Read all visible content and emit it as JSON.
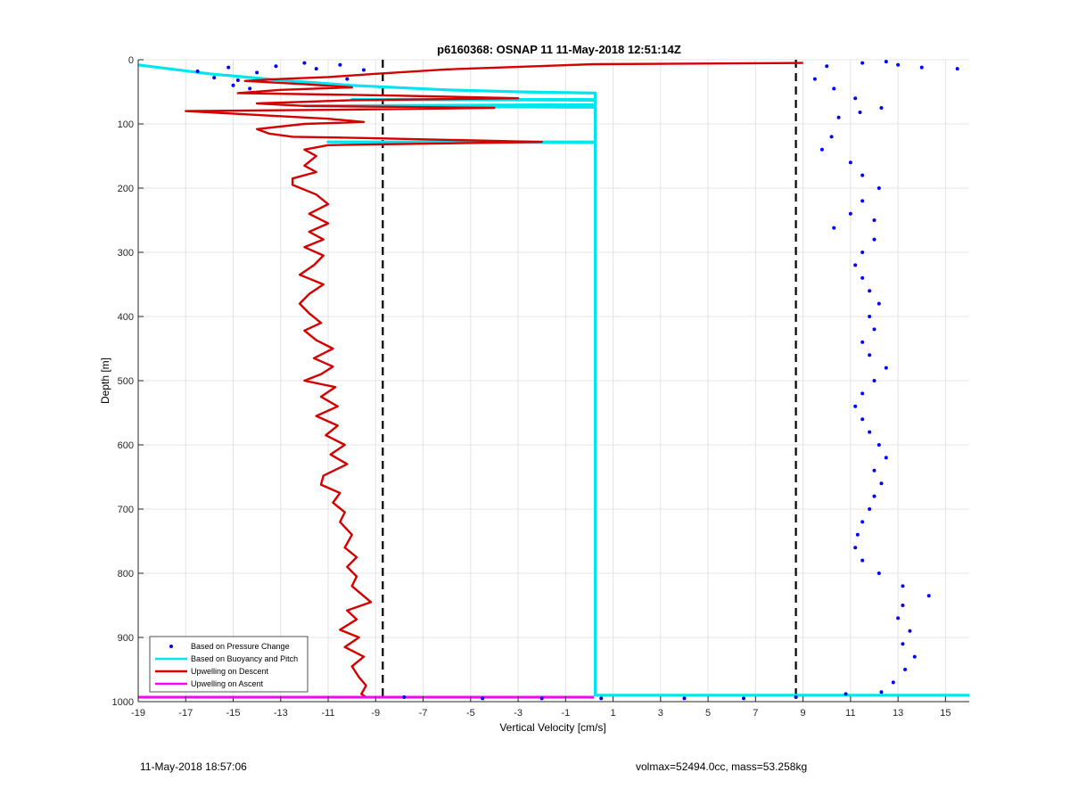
{
  "chart_data": {
    "type": "scatter",
    "title": "p6160368: OSNAP 11 11-May-2018 12:51:14Z",
    "xlabel": "Vertical Velocity [cm/s]",
    "ylabel": "Depth [m]",
    "xlim": [
      -19,
      16
    ],
    "ylim": [
      1000,
      0
    ],
    "y_reversed": true,
    "grid": true,
    "x_ticks": [
      -19,
      -17,
      -15,
      -13,
      -11,
      -9,
      -7,
      -5,
      -3,
      -1,
      1,
      3,
      5,
      7,
      9,
      11,
      13,
      15
    ],
    "y_ticks": [
      0,
      100,
      200,
      300,
      400,
      500,
      600,
      700,
      800,
      900,
      1000
    ],
    "reference_lines": [
      {
        "type": "vertical-dashed",
        "x": -8.7,
        "color": "#000000"
      },
      {
        "type": "vertical-dashed",
        "x": 8.7,
        "color": "#000000"
      }
    ],
    "legend": {
      "placement": "bottom-left",
      "entries": [
        {
          "label": "Based on Pressure Change",
          "color": "#0000ff",
          "marker": "dot"
        },
        {
          "label": "Based on Buoyancy and Pitch",
          "color": "#00e5ee",
          "marker": "line"
        },
        {
          "label": "Upwelling on Descent",
          "color": "#d40000",
          "marker": "line"
        },
        {
          "label": "Upwelling on Ascent",
          "color": "#ff00ff",
          "marker": "line"
        }
      ]
    },
    "series": [
      {
        "name": "Based on Buoyancy and Pitch",
        "style": "line",
        "color": "#00e5ee",
        "points": [
          [
            -19,
            8
          ],
          [
            -16,
            22
          ],
          [
            -13,
            32
          ],
          [
            -10,
            40
          ],
          [
            -6,
            47
          ],
          [
            -3,
            50
          ],
          [
            0.25,
            52
          ],
          [
            0.25,
            62
          ],
          [
            -10,
            62
          ],
          [
            0.25,
            63
          ],
          [
            0.25,
            70
          ],
          [
            -12,
            72
          ],
          [
            0.25,
            74
          ],
          [
            0.25,
            128
          ],
          [
            -11,
            128
          ],
          [
            0.25,
            129
          ],
          [
            0.25,
            990
          ],
          [
            16,
            990
          ]
        ]
      },
      {
        "name": "Upwelling on Descent",
        "style": "line",
        "color": "#d40000",
        "points": [
          [
            9,
            5
          ],
          [
            0.2,
            7
          ],
          [
            -6,
            15
          ],
          [
            -9,
            22
          ],
          [
            -11,
            27
          ],
          [
            -13,
            30
          ],
          [
            -14.5,
            33
          ],
          [
            -12,
            38
          ],
          [
            -10,
            43
          ],
          [
            -13,
            47
          ],
          [
            -14.8,
            52
          ],
          [
            -8,
            56
          ],
          [
            -3,
            60
          ],
          [
            -10,
            63
          ],
          [
            -14,
            68
          ],
          [
            -12,
            72
          ],
          [
            -4,
            75
          ],
          [
            -11,
            78
          ],
          [
            -17,
            80
          ],
          [
            -14,
            86
          ],
          [
            -11,
            92
          ],
          [
            -9.5,
            97
          ],
          [
            -12,
            100
          ],
          [
            -14,
            108
          ],
          [
            -13.5,
            115
          ],
          [
            -12.5,
            120
          ],
          [
            -9.5,
            122
          ],
          [
            -2,
            128
          ],
          [
            -11,
            133
          ],
          [
            -12,
            140
          ],
          [
            -11.5,
            150
          ],
          [
            -12,
            165
          ],
          [
            -11.5,
            175
          ],
          [
            -12.5,
            185
          ],
          [
            -12.5,
            195
          ],
          [
            -11.5,
            210
          ],
          [
            -11,
            225
          ],
          [
            -11.8,
            240
          ],
          [
            -11,
            255
          ],
          [
            -11.8,
            268
          ],
          [
            -11.2,
            280
          ],
          [
            -12,
            292
          ],
          [
            -11.2,
            305
          ],
          [
            -11.6,
            320
          ],
          [
            -12.2,
            335
          ],
          [
            -11.2,
            350
          ],
          [
            -11.8,
            365
          ],
          [
            -12.2,
            380
          ],
          [
            -11.8,
            395
          ],
          [
            -11.3,
            410
          ],
          [
            -12,
            422
          ],
          [
            -11.5,
            437
          ],
          [
            -10.8,
            450
          ],
          [
            -11.6,
            465
          ],
          [
            -10.8,
            478
          ],
          [
            -11.3,
            490
          ],
          [
            -12,
            500
          ],
          [
            -10.7,
            510
          ],
          [
            -11.3,
            525
          ],
          [
            -10.6,
            540
          ],
          [
            -11.5,
            555
          ],
          [
            -10.6,
            570
          ],
          [
            -11.1,
            585
          ],
          [
            -10.3,
            600
          ],
          [
            -10.9,
            615
          ],
          [
            -10.2,
            630
          ],
          [
            -11.2,
            648
          ],
          [
            -11.3,
            662
          ],
          [
            -10.5,
            675
          ],
          [
            -10.8,
            690
          ],
          [
            -10.3,
            705
          ],
          [
            -10.5,
            720
          ],
          [
            -10,
            740
          ],
          [
            -10.3,
            760
          ],
          [
            -9.8,
            775
          ],
          [
            -10.2,
            790
          ],
          [
            -9.8,
            805
          ],
          [
            -10,
            820
          ],
          [
            -9.2,
            845
          ],
          [
            -10.2,
            858
          ],
          [
            -9.8,
            872
          ],
          [
            -10.5,
            888
          ],
          [
            -9.7,
            900
          ],
          [
            -10.3,
            915
          ],
          [
            -9.5,
            930
          ],
          [
            -10,
            945
          ],
          [
            -9.7,
            962
          ],
          [
            -9.4,
            975
          ],
          [
            -9.6,
            988
          ],
          [
            -9.4,
            993
          ]
        ]
      },
      {
        "name": "Upwelling on Ascent",
        "style": "line",
        "color": "#ff00ff",
        "points": [
          [
            -19,
            993
          ],
          [
            0.2,
            993
          ]
        ]
      },
      {
        "name": "Based on Pressure Change",
        "style": "dots",
        "color": "#0000ff",
        "points": [
          [
            -16.5,
            18
          ],
          [
            -15.2,
            12
          ],
          [
            -14,
            20
          ],
          [
            -13.2,
            10
          ],
          [
            -12,
            5
          ],
          [
            -11.5,
            14
          ],
          [
            -10.5,
            8
          ],
          [
            -9.5,
            16
          ],
          [
            -15.8,
            28
          ],
          [
            -14.8,
            32
          ],
          [
            -14.3,
            45
          ],
          [
            -10.2,
            30
          ],
          [
            -15,
            40
          ],
          [
            10,
            10
          ],
          [
            11.5,
            5
          ],
          [
            13,
            8
          ],
          [
            14,
            12
          ],
          [
            15.5,
            14
          ],
          [
            12.5,
            3
          ],
          [
            9.5,
            30
          ],
          [
            10.3,
            45
          ],
          [
            11.2,
            60
          ],
          [
            12.3,
            75
          ],
          [
            10.5,
            90
          ],
          [
            11.4,
            82
          ],
          [
            10.2,
            120
          ],
          [
            9.8,
            140
          ],
          [
            11,
            160
          ],
          [
            11.5,
            180
          ],
          [
            12.2,
            200
          ],
          [
            11.5,
            220
          ],
          [
            11,
            240
          ],
          [
            12,
            250
          ],
          [
            10.3,
            262
          ],
          [
            12,
            280
          ],
          [
            11.5,
            300
          ],
          [
            11.2,
            320
          ],
          [
            11.5,
            340
          ],
          [
            11.8,
            360
          ],
          [
            12.2,
            380
          ],
          [
            11.8,
            400
          ],
          [
            12,
            420
          ],
          [
            11.5,
            440
          ],
          [
            11.8,
            460
          ],
          [
            12.5,
            480
          ],
          [
            12,
            500
          ],
          [
            11.5,
            520
          ],
          [
            11.2,
            540
          ],
          [
            11.5,
            560
          ],
          [
            11.8,
            580
          ],
          [
            12.2,
            600
          ],
          [
            12.5,
            620
          ],
          [
            12,
            640
          ],
          [
            12.3,
            660
          ],
          [
            12,
            680
          ],
          [
            11.8,
            700
          ],
          [
            11.5,
            720
          ],
          [
            11.3,
            740
          ],
          [
            11.2,
            760
          ],
          [
            11.5,
            780
          ],
          [
            12.2,
            800
          ],
          [
            13.2,
            820
          ],
          [
            14.3,
            835
          ],
          [
            13.2,
            850
          ],
          [
            13,
            870
          ],
          [
            13.5,
            890
          ],
          [
            13.2,
            910
          ],
          [
            13.7,
            930
          ],
          [
            13.3,
            950
          ],
          [
            12.8,
            970
          ],
          [
            12.3,
            985
          ],
          [
            10.8,
            988
          ],
          [
            0.5,
            995
          ],
          [
            4,
            995
          ],
          [
            6.5,
            995
          ],
          [
            8.7,
            993
          ],
          [
            -4.5,
            995
          ],
          [
            -7.8,
            993
          ],
          [
            -2,
            995
          ]
        ]
      }
    ],
    "markers_note": "",
    "annotations": []
  },
  "footer": {
    "left": "11-May-2018 18:57:06",
    "right": "volmax=52494.0cc, mass=53.258kg"
  }
}
